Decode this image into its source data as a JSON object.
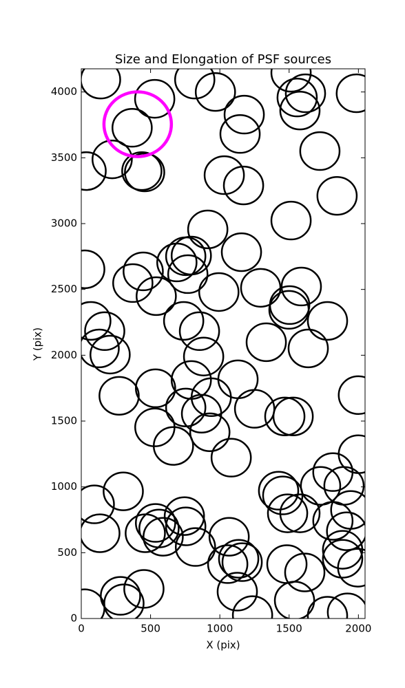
{
  "chart_data": {
    "type": "scatter",
    "title": "Size and Elongation of PSF sources",
    "x_label": "X (pix)",
    "y_label": "Y (pix)",
    "xlim": [
      0,
      2048
    ],
    "ylim": [
      0,
      4176
    ],
    "xticks": [
      0,
      500,
      1000,
      1500,
      2000
    ],
    "yticks": [
      0,
      500,
      1000,
      1500,
      2000,
      2500,
      3000,
      3500,
      4000
    ],
    "series": [
      {
        "color": "#000000",
        "x": [
          139,
          530,
          367,
          819,
          968,
          1176,
          1146,
          1514,
          1558,
          1618,
          1578,
          1985,
          1722,
          223,
          35,
          437,
          457,
          1032,
          1171,
          1846,
          1514,
          913,
          25,
          447,
          372,
          690,
          754,
          794,
          769,
          1156,
          541,
          993,
          1295,
          1588,
          1504,
          1499,
          1777,
          69,
          169,
          129,
          208,
          739,
          853,
          883,
          1335,
          1638,
          1131,
          794,
          536,
          938,
          2000,
          273,
          754,
          1251,
          868,
          1469,
          1529,
          928,
          531,
          665,
          1082,
          2000,
          1816,
          1727,
          1896,
          303,
          94,
          1424,
          1454,
          1489,
          1578,
          1945,
          1816,
          1915,
          134,
          536,
          561,
          591,
          744,
          754,
          462,
          824,
          1067,
          1886,
          1886,
          1995,
          1057,
          1136,
          1161,
          1484,
          1613,
          1126,
          452,
          283,
          308,
          1539,
          25,
          1236,
          1777,
          1921
        ],
        "y": [
          4094,
          3948,
          3728,
          4094,
          4000,
          3828,
          3681,
          4146,
          3958,
          3990,
          3859,
          3990,
          3551,
          3488,
          3399,
          3399,
          3389,
          3368,
          3290,
          3211,
          3023,
          2956,
          2653,
          2637,
          2548,
          2705,
          2752,
          2757,
          2616,
          2783,
          2449,
          2480,
          2512,
          2522,
          2381,
          2345,
          2261,
          2261,
          2183,
          2052,
          2005,
          2261,
          2183,
          1990,
          2099,
          2052,
          1817,
          1812,
          1749,
          1681,
          1697,
          1692,
          1603,
          1593,
          1556,
          1535,
          1535,
          1415,
          1452,
          1311,
          1222,
          1248,
          1112,
          1008,
          1008,
          966,
          867,
          971,
          935,
          799,
          799,
          825,
          742,
          663,
          648,
          726,
          684,
          621,
          778,
          700,
          648,
          543,
          621,
          522,
          454,
          386,
          413,
          454,
          428,
          413,
          350,
          204,
          225,
          172,
          115,
          136,
          78,
          26,
          21,
          47
        ]
      },
      {
        "color": "#ff00ff",
        "x": [
          407
        ],
        "y": [
          3755
        ]
      }
    ]
  }
}
